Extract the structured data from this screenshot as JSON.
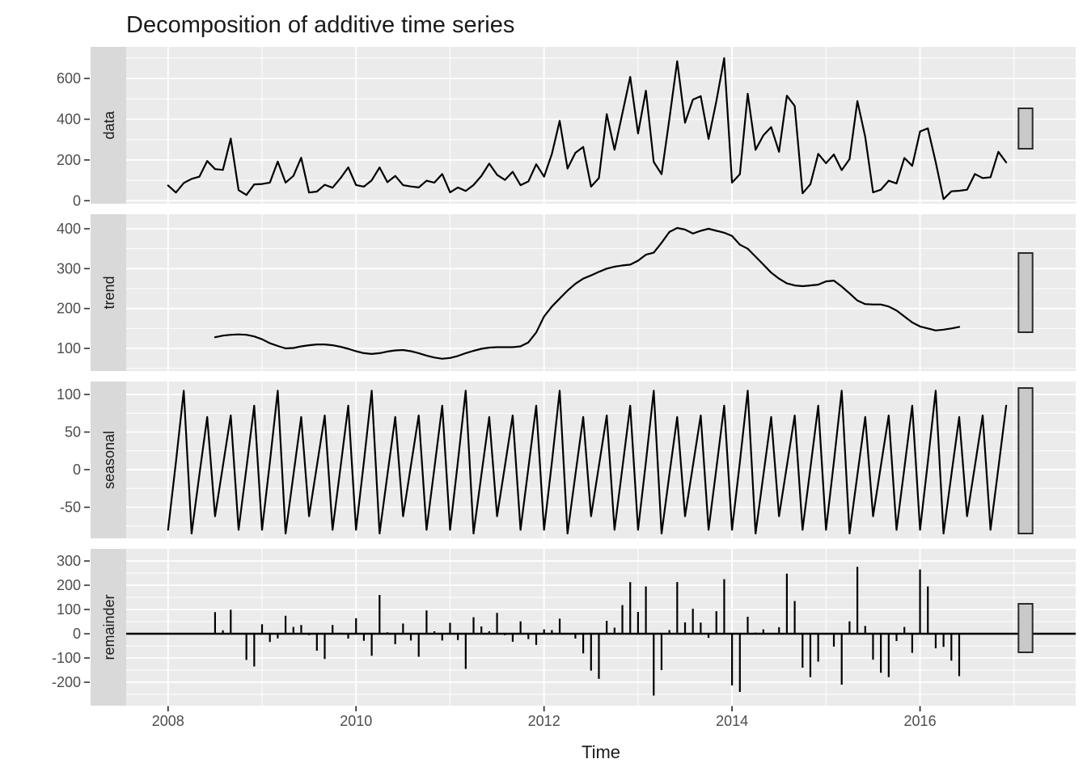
{
  "title": "Decomposition of additive time series",
  "x_axis": {
    "label": "Time",
    "ticks": [
      2008,
      2010,
      2012,
      2014,
      2016
    ],
    "minor_ticks": [
      2009,
      2011,
      2013,
      2015,
      2017
    ]
  },
  "panels": [
    {
      "label": "data",
      "yticks": [
        0,
        200,
        400,
        600
      ]
    },
    {
      "label": "trend",
      "yticks": [
        100,
        200,
        300,
        400
      ]
    },
    {
      "label": "seasonal",
      "yticks": [
        -50,
        0,
        50,
        100
      ]
    },
    {
      "label": "remainder",
      "yticks": [
        -200,
        -100,
        0,
        100,
        200,
        300
      ]
    }
  ],
  "colors": {
    "panel_bg": "#ebebeb",
    "strip_bg": "#d9d9d9",
    "grid": "#ffffff",
    "series_line": "#000000",
    "tick_label": "#4d4d4d",
    "tick_mark": "#333333",
    "range_bar_fill": "#c9c9c9",
    "range_bar_stroke": "#2b2b2b"
  },
  "range_bar_units": 200,
  "chart_data": {
    "type": "line",
    "title": "Decomposition of additive time series",
    "xlabel": "Time",
    "frequency": "monthly",
    "panels": [
      "data",
      "trend",
      "seasonal",
      "remainder"
    ],
    "x_ticks": [
      2008,
      2010,
      2012,
      2014,
      2016
    ],
    "ylims": {
      "data": [
        -15,
        755
      ],
      "trend": [
        45,
        440
      ],
      "seasonal": [
        -115,
        120
      ],
      "remainder": [
        -330,
        350
      ]
    },
    "grid": true,
    "legend": "none",
    "series": [
      {
        "name": "data",
        "start": "2008-01",
        "values": [
          75,
          40,
          87,
          107,
          118,
          195,
          155,
          151,
          305,
          52,
          28,
          80,
          82,
          89,
          192,
          89,
          122,
          211,
          40,
          45,
          78,
          64,
          110,
          164,
          77,
          69,
          100,
          163,
          91,
          122,
          76,
          70,
          65,
          98,
          89,
          131,
          41,
          65,
          48,
          77,
          122,
          182,
          127,
          102,
          142,
          76,
          95,
          179,
          118,
          230,
          392,
          158,
          235,
          264,
          69,
          111,
          425,
          250,
          428,
          608,
          330,
          540,
          190,
          130,
          400,
          685,
          383,
          496,
          513,
          303,
          490,
          700,
          89,
          130,
          525,
          250,
          321,
          361,
          240,
          516,
          465,
          36,
          81,
          230,
          184,
          227,
          150,
          204,
          489,
          313,
          41,
          54,
          98,
          85,
          210,
          171,
          340,
          355,
          190,
          8,
          46,
          49,
          54,
          131,
          111,
          115,
          240,
          188
        ]
      },
      {
        "name": "trend",
        "start": "2008-07",
        "values": [
          128,
          132,
          134,
          135,
          134,
          130,
          123,
          113,
          106,
          100,
          101,
          105,
          108,
          110,
          110,
          108,
          104,
          99,
          93,
          88,
          86,
          88,
          92,
          95,
          96,
          93,
          88,
          82,
          77,
          74,
          76,
          81,
          88,
          94,
          99,
          102,
          103,
          103,
          103,
          105,
          115,
          140,
          180,
          205,
          225,
          245,
          262,
          275,
          283,
          292,
          300,
          305,
          308,
          310,
          320,
          335,
          340,
          365,
          392,
          402,
          398,
          388,
          395,
          400,
          395,
          390,
          382,
          360,
          350,
          330,
          310,
          290,
          275,
          263,
          258,
          256,
          258,
          260,
          268,
          270,
          255,
          238,
          220,
          211,
          210,
          210,
          205,
          195,
          180,
          165,
          155,
          150,
          145,
          147,
          150,
          154
        ]
      },
      {
        "name": "seasonal",
        "start": "2008-01",
        "repeats_yearly": true,
        "pattern_12mo": [
          -80,
          10,
          105,
          -85,
          -7,
          70,
          -62,
          5,
          72,
          -80,
          2,
          85
        ]
      },
      {
        "name": "remainder",
        "start": "2008-07",
        "values": [
          89,
          14,
          99,
          -3,
          -108,
          -135,
          39,
          -34,
          -19,
          74,
          28,
          36,
          -6,
          -70,
          -104,
          36,
          4,
          -20,
          64,
          -29,
          -91,
          160,
          6,
          -43,
          42,
          -28,
          -95,
          96,
          10,
          -28,
          45,
          -26,
          -145,
          68,
          30,
          10,
          86,
          -6,
          -33,
          51,
          -22,
          -46,
          18,
          15,
          62,
          -2,
          -20,
          -81,
          -152,
          -186,
          53,
          25,
          118,
          213,
          90,
          195,
          -255,
          -150,
          15,
          213,
          47,
          103,
          46,
          -17,
          93,
          225,
          -213,
          -240,
          70,
          5,
          18,
          1,
          27,
          248,
          135,
          -140,
          -179,
          -115,
          -4,
          -53,
          -210,
          51,
          276,
          32,
          -107,
          -161,
          -179,
          -30,
          28,
          -79,
          265,
          195,
          -60,
          -54,
          -111,
          -175
        ]
      }
    ]
  }
}
